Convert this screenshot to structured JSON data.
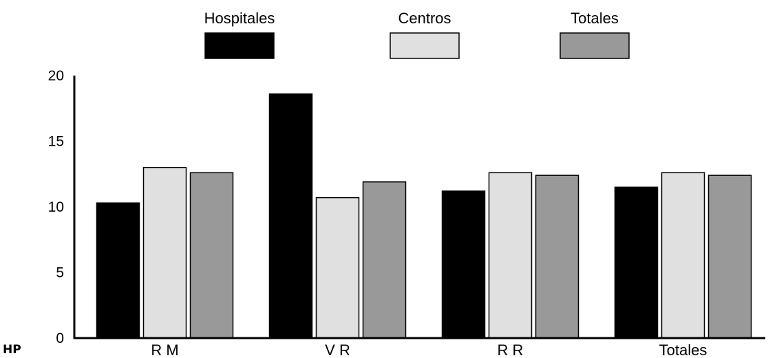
{
  "chart_data": {
    "type": "bar",
    "categories": [
      "R M",
      "V R",
      "R R",
      "Totales"
    ],
    "series": [
      {
        "name": "Hospitales",
        "color": "#000000",
        "values": [
          10.3,
          18.6,
          11.2,
          11.5
        ]
      },
      {
        "name": "Centros",
        "color": "#e0e0e0",
        "values": [
          13.0,
          10.7,
          12.6,
          12.6
        ]
      },
      {
        "name": "Totales",
        "color": "#999999",
        "values": [
          12.6,
          11.9,
          12.4,
          12.4
        ]
      }
    ],
    "ylim": [
      0,
      20
    ],
    "yticks": [
      "0",
      "5",
      "10",
      "15",
      "20"
    ],
    "legend_position": "top",
    "grid": false,
    "corner_label": "HP"
  }
}
